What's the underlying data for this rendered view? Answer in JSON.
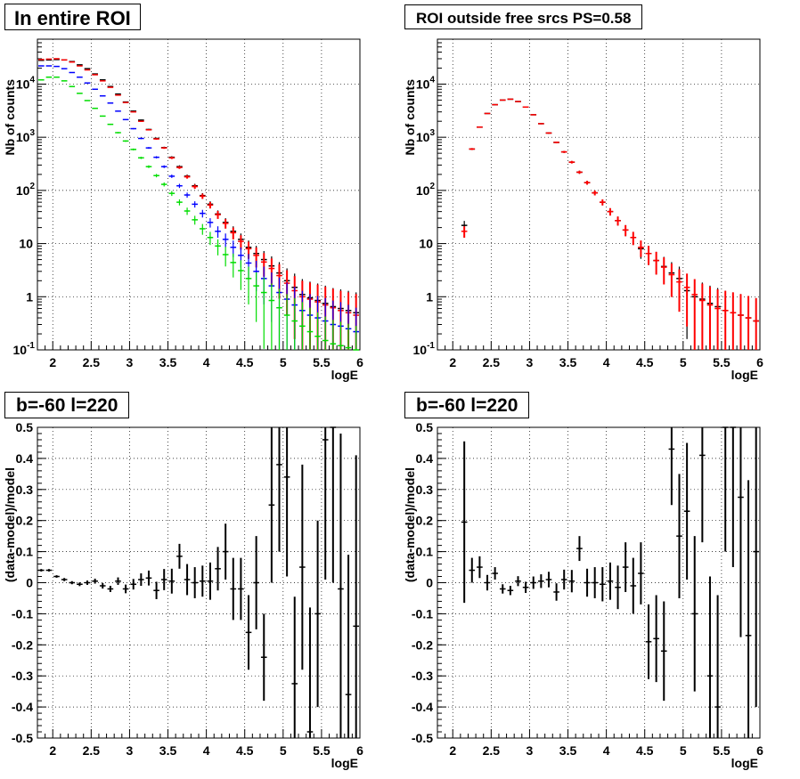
{
  "chart_data": [
    {
      "type": "scatter",
      "title": "In entire ROI",
      "xlabel": "logE",
      "ylabel": "Nb of counts",
      "xlim": [
        1.8,
        6.0
      ],
      "ylim": [
        0.1,
        70000
      ],
      "yscale": "log",
      "grid": true,
      "x_ticks": [
        "2",
        "2.5",
        "3",
        "3.5",
        "4",
        "4.5",
        "5",
        "5.5",
        "6"
      ],
      "y_ticks": [
        "10^-1",
        "1",
        "10",
        "10^2",
        "10^3",
        "10^4"
      ],
      "bin_width": 0.1,
      "series": [
        {
          "color": "#000000",
          "style": "markers-errors",
          "x": [
            1.85,
            1.95,
            2.05,
            2.15,
            2.25,
            2.35,
            2.45,
            2.55,
            2.65,
            2.75,
            2.85,
            2.95,
            3.05,
            3.15,
            3.25,
            3.35,
            3.45,
            3.55,
            3.65,
            3.75,
            3.85,
            3.95,
            4.05,
            4.15,
            4.25,
            4.35,
            4.45,
            4.55,
            4.65,
            4.75,
            4.85,
            4.95,
            5.05,
            5.15,
            5.25,
            5.35,
            5.45,
            5.55,
            5.65,
            5.75,
            5.85,
            5.95
          ],
          "y": [
            28000,
            28500,
            29000,
            28500,
            26500,
            23000,
            19500,
            15500,
            12000,
            9000,
            6500,
            4600,
            3100,
            2100,
            1400,
            950,
            640,
            420,
            280,
            185,
            122,
            80,
            55,
            36,
            25,
            17,
            12,
            8.5,
            6.5,
            5.0,
            3.8,
            2.8,
            2.0,
            1.5,
            1.1,
            0.95,
            0.85,
            0.75,
            0.65,
            0.6,
            0.55,
            0.5
          ]
        },
        {
          "color": "#ff0000",
          "style": "markers-errors",
          "x": [
            1.85,
            1.95,
            2.05,
            2.15,
            2.25,
            2.35,
            2.45,
            2.55,
            2.65,
            2.75,
            2.85,
            2.95,
            3.05,
            3.15,
            3.25,
            3.35,
            3.45,
            3.55,
            3.65,
            3.75,
            3.85,
            3.95,
            4.05,
            4.15,
            4.25,
            4.35,
            4.45,
            4.55,
            4.65,
            4.75,
            4.85,
            4.95,
            5.05,
            5.15,
            5.25,
            5.35,
            5.45,
            5.55,
            5.65,
            5.75,
            5.85,
            5.95
          ],
          "y": [
            29000,
            29500,
            30000,
            28500,
            26000,
            22000,
            18500,
            15000,
            11500,
            8700,
            6200,
            4500,
            3000,
            2000,
            1380,
            930,
            630,
            410,
            270,
            180,
            118,
            78,
            53,
            35,
            24,
            16,
            11,
            8.0,
            6.0,
            4.5,
            3.4,
            2.5,
            1.8,
            1.3,
            1.0,
            0.9,
            0.8,
            0.7,
            0.62,
            0.55,
            0.5,
            0.45
          ]
        },
        {
          "color": "#0000ff",
          "style": "markers-errors",
          "x": [
            1.85,
            1.95,
            2.05,
            2.15,
            2.25,
            2.35,
            2.45,
            2.55,
            2.65,
            2.75,
            2.85,
            2.95,
            3.05,
            3.15,
            3.25,
            3.35,
            3.45,
            3.55,
            3.65,
            3.75,
            3.85,
            3.95,
            4.05,
            4.15,
            4.25,
            4.35,
            4.45,
            4.55,
            4.65,
            4.75,
            4.85,
            4.95,
            5.05,
            5.15,
            5.25,
            5.35,
            5.45,
            5.55,
            5.65,
            5.75,
            5.85,
            5.95
          ],
          "y": [
            22000,
            22000,
            21500,
            19500,
            16500,
            13500,
            10500,
            8000,
            6000,
            4400,
            3100,
            2150,
            1450,
            950,
            630,
            420,
            280,
            185,
            122,
            82,
            55,
            37,
            25,
            17,
            12,
            8.5,
            6.0,
            4.3,
            3.0,
            2.2,
            1.6,
            1.2,
            0.9,
            0.7,
            0.55,
            0.45,
            0.4,
            0.35,
            0.3,
            0.28,
            0.25,
            0.22
          ]
        },
        {
          "color": "#00dd00",
          "style": "markers-errors",
          "x": [
            1.85,
            1.95,
            2.05,
            2.15,
            2.25,
            2.35,
            2.45,
            2.55,
            2.65,
            2.75,
            2.85,
            2.95,
            3.05,
            3.15,
            3.25,
            3.35,
            3.45,
            3.55,
            3.65,
            3.75,
            3.85,
            3.95,
            4.05,
            4.15,
            4.25,
            4.35,
            4.45,
            4.55,
            4.65,
            4.75,
            4.85,
            4.95,
            5.05,
            5.15,
            5.25,
            5.35,
            5.45,
            5.55,
            5.65,
            5.75,
            5.85,
            5.95
          ],
          "y": [
            12000,
            13500,
            13500,
            11500,
            9000,
            6700,
            4900,
            3500,
            2500,
            1750,
            1220,
            850,
            590,
            410,
            280,
            190,
            130,
            88,
            60,
            41,
            28,
            19,
            13,
            9.0,
            6.2,
            4.4,
            3.1,
            2.2,
            1.6,
            1.2,
            0.85,
            0.62,
            0.45,
            0.35,
            0.28,
            0.22,
            0.18,
            0.15,
            0.13,
            0.12,
            0.11,
            0.1
          ]
        }
      ]
    },
    {
      "type": "scatter",
      "title": "ROI outside free srcs PS=0.58",
      "xlabel": "logE",
      "ylabel": "Nb of counts",
      "xlim": [
        1.8,
        6.0
      ],
      "ylim": [
        0.1,
        70000
      ],
      "yscale": "log",
      "grid": true,
      "x_ticks": [
        "2",
        "2.5",
        "3",
        "3.5",
        "4",
        "4.5",
        "5",
        "5.5",
        "6"
      ],
      "y_ticks": [
        "10^-1",
        "1",
        "10",
        "10^2",
        "10^3",
        "10^4"
      ],
      "bin_width": 0.1,
      "series": [
        {
          "color": "#000000",
          "style": "markers-errors",
          "x": [
            2.15,
            2.25,
            2.35,
            2.45,
            2.55,
            2.65,
            2.75,
            2.85,
            2.95,
            3.05,
            3.15,
            3.25,
            3.35,
            3.45,
            3.55,
            3.65,
            3.75,
            3.85,
            3.95,
            4.05,
            4.15,
            4.25,
            4.35,
            4.45,
            4.55,
            4.65,
            4.75,
            4.85,
            4.95,
            5.05,
            5.15,
            5.25,
            5.35,
            5.45,
            5.55,
            5.65,
            5.75,
            5.85,
            5.95
          ],
          "y": [
            22,
            600,
            1550,
            2800,
            4100,
            5000,
            5200,
            4700,
            3700,
            2650,
            1800,
            1200,
            800,
            530,
            340,
            220,
            140,
            90,
            60,
            40,
            27,
            18,
            13,
            8.0,
            6.5,
            4.8,
            3.7,
            2.8,
            2.2,
            1.3,
            1.0,
            0.9,
            0.75,
            0.65,
            0.55,
            0.5,
            0.45,
            0.4,
            0.35
          ]
        },
        {
          "color": "#ff0000",
          "style": "markers-errors",
          "x": [
            2.15,
            2.25,
            2.35,
            2.45,
            2.55,
            2.65,
            2.75,
            2.85,
            2.95,
            3.05,
            3.15,
            3.25,
            3.35,
            3.45,
            3.55,
            3.65,
            3.75,
            3.85,
            3.95,
            4.05,
            4.15,
            4.25,
            4.35,
            4.45,
            4.55,
            4.65,
            4.75,
            4.85,
            4.95,
            5.05,
            5.15,
            5.25,
            5.35,
            5.45,
            5.55,
            5.65,
            5.75,
            5.85,
            5.95
          ],
          "y": [
            17,
            600,
            1550,
            2800,
            4100,
            5000,
            5200,
            4700,
            3700,
            2650,
            1800,
            1200,
            800,
            530,
            340,
            220,
            140,
            90,
            60,
            40,
            27,
            18,
            13,
            8.5,
            6.5,
            4.8,
            3.6,
            2.6,
            1.9,
            1.5,
            1.1,
            0.85,
            0.7,
            0.6,
            0.55,
            0.5,
            0.45,
            0.4,
            0.35
          ]
        }
      ]
    },
    {
      "type": "scatter",
      "title": "b=-60 l=220",
      "xlabel": "logE",
      "ylabel": "(data-model)/model",
      "xlim": [
        1.8,
        6.0
      ],
      "ylim": [
        -0.5,
        0.5
      ],
      "grid": true,
      "x_ticks": [
        "2",
        "2.5",
        "3",
        "3.5",
        "4",
        "4.5",
        "5",
        "5.5",
        "6"
      ],
      "y_ticks": [
        "-0.5",
        "-0.4",
        "-0.3",
        "-0.2",
        "-0.1",
        "0",
        "0.1",
        "0.2",
        "0.3",
        "0.4",
        "0.5"
      ],
      "bin_width": 0.1,
      "series": [
        {
          "color": "#000000",
          "style": "markers-errors",
          "x": [
            1.85,
            1.95,
            2.05,
            2.15,
            2.25,
            2.35,
            2.45,
            2.55,
            2.65,
            2.75,
            2.85,
            2.95,
            3.05,
            3.15,
            3.25,
            3.35,
            3.45,
            3.55,
            3.65,
            3.75,
            3.85,
            3.95,
            4.05,
            4.15,
            4.25,
            4.35,
            4.45,
            4.55,
            4.65,
            4.75,
            4.85,
            4.95,
            5.05,
            5.15,
            5.25,
            5.35,
            5.45,
            5.55,
            5.65,
            5.75,
            5.85,
            5.95
          ],
          "y": [
            0.04,
            0.04,
            0.02,
            0.01,
            0.0,
            -0.005,
            0.0,
            0.005,
            -0.01,
            -0.02,
            0.005,
            -0.02,
            -0.005,
            0.01,
            0.015,
            -0.025,
            0.01,
            0.005,
            0.085,
            0.01,
            0.0,
            0.005,
            0.005,
            0.045,
            0.1,
            -0.02,
            -0.02,
            -0.16,
            0.0,
            -0.24,
            0.25,
            0.38,
            0.34,
            -0.325,
            0.05,
            -0.48,
            -0.1,
            0.46,
            0.5,
            -0.02,
            -0.36,
            -0.14
          ],
          "err": [
            0.004,
            0.004,
            0.004,
            0.005,
            0.005,
            0.006,
            0.007,
            0.008,
            0.009,
            0.01,
            0.012,
            0.014,
            0.017,
            0.02,
            0.024,
            0.028,
            0.034,
            0.04,
            0.04,
            0.05,
            0.05,
            0.05,
            0.06,
            0.07,
            0.09,
            0.1,
            0.1,
            0.12,
            0.15,
            0.14,
            0.25,
            0.28,
            0.32,
            0.28,
            0.33,
            0.4,
            0.3,
            0.45,
            0.5,
            0.5,
            0.45,
            0.55
          ]
        }
      ]
    },
    {
      "type": "scatter",
      "title": "b=-60 l=220",
      "xlabel": "logE",
      "ylabel": "(data-model)/model",
      "xlim": [
        1.8,
        6.0
      ],
      "ylim": [
        -0.5,
        0.5
      ],
      "grid": true,
      "x_ticks": [
        "2",
        "2.5",
        "3",
        "3.5",
        "4",
        "4.5",
        "5",
        "5.5",
        "6"
      ],
      "y_ticks": [
        "-0.5",
        "-0.4",
        "-0.3",
        "-0.2",
        "-0.1",
        "0",
        "0.1",
        "0.2",
        "0.3",
        "0.4",
        "0.5"
      ],
      "bin_width": 0.1,
      "series": [
        {
          "color": "#000000",
          "style": "markers-errors",
          "x": [
            2.15,
            2.25,
            2.35,
            2.45,
            2.55,
            2.65,
            2.75,
            2.85,
            2.95,
            3.05,
            3.15,
            3.25,
            3.35,
            3.45,
            3.55,
            3.65,
            3.75,
            3.85,
            3.95,
            4.05,
            4.15,
            4.25,
            4.35,
            4.45,
            4.55,
            4.65,
            4.75,
            4.85,
            4.95,
            5.05,
            5.15,
            5.25,
            5.35,
            5.45,
            5.55,
            5.65,
            5.75,
            5.85,
            5.95
          ],
          "y": [
            0.195,
            0.04,
            0.05,
            0.0,
            0.03,
            -0.02,
            -0.025,
            0.005,
            -0.015,
            0.0,
            0.005,
            0.01,
            -0.03,
            0.01,
            0.005,
            0.11,
            0.0,
            0.0,
            -0.005,
            0.005,
            -0.015,
            0.05,
            -0.01,
            0.03,
            -0.19,
            -0.18,
            -0.22,
            0.43,
            0.15,
            0.23,
            -0.1,
            0.41,
            -0.3,
            -0.4,
            0.5,
            0.5,
            0.275,
            -0.17,
            0.1
          ],
          "err": [
            0.26,
            0.04,
            0.035,
            0.025,
            0.02,
            0.015,
            0.015,
            0.016,
            0.018,
            0.02,
            0.022,
            0.025,
            0.028,
            0.032,
            0.036,
            0.04,
            0.045,
            0.05,
            0.055,
            0.06,
            0.07,
            0.08,
            0.09,
            0.1,
            0.12,
            0.14,
            0.16,
            0.18,
            0.2,
            0.22,
            0.25,
            0.28,
            0.32,
            0.36,
            0.4,
            0.45,
            0.45,
            0.5,
            0.5
          ]
        }
      ]
    }
  ]
}
